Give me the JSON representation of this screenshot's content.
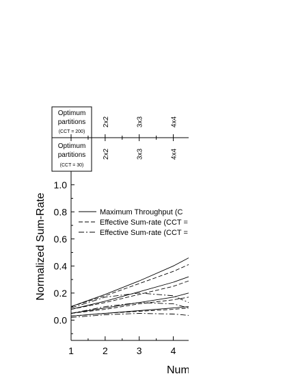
{
  "chart_data": {
    "type": "line",
    "title": "",
    "ylabel": "Normalized Sum-Rate",
    "xlabel": "Num",
    "xlim": [
      1,
      4.45
    ],
    "ylim": [
      -0.15,
      1.1
    ],
    "x_ticks": [
      "1",
      "2",
      "3",
      "4"
    ],
    "y_ticks": [
      "0.0",
      "0.2",
      "0.4",
      "0.6",
      "0.8",
      "1.0"
    ],
    "legend": {
      "placement": "top-right",
      "entries": [
        {
          "label": "Maximum Throughput (C",
          "style": "solid"
        },
        {
          "label": "Effective Sum-rate (CCT =",
          "style": "dashed"
        },
        {
          "label": "Effective Sum-rate (CCT =",
          "style": "dashdot"
        }
      ]
    },
    "partitions": [
      {
        "label_lines": [
          "Optimum",
          "partitions"
        ],
        "cct": "(CCT = 200)",
        "values": [
          "2x2",
          "3x3",
          "4x4"
        ]
      },
      {
        "label_lines": [
          "Optimum",
          "partitions"
        ],
        "cct": "(CCT = 30)",
        "values": [
          "2x2",
          "3x3",
          "4x4"
        ]
      }
    ],
    "series": [
      {
        "style": "solid",
        "x": [
          1,
          2,
          3,
          4,
          4.45
        ],
        "values": [
          0.1,
          0.19,
          0.29,
          0.4,
          0.46
        ]
      },
      {
        "style": "dashed",
        "x": [
          1,
          2,
          3,
          4,
          4.45
        ],
        "values": [
          0.1,
          0.18,
          0.27,
          0.36,
          0.41
        ]
      },
      {
        "style": "solid",
        "x": [
          1,
          2,
          3,
          4,
          4.45
        ],
        "values": [
          0.08,
          0.14,
          0.21,
          0.28,
          0.32
        ]
      },
      {
        "style": "dashed",
        "x": [
          1,
          2,
          3,
          4,
          4.45
        ],
        "values": [
          0.08,
          0.13,
          0.19,
          0.25,
          0.29
        ]
      },
      {
        "style": "dashdot",
        "x": [
          1,
          2,
          3,
          4,
          4.45
        ],
        "values": [
          0.09,
          0.17,
          0.2,
          0.18,
          0.13
        ]
      },
      {
        "style": "solid",
        "x": [
          1,
          2,
          3,
          4,
          4.45
        ],
        "values": [
          0.05,
          0.09,
          0.13,
          0.17,
          0.2
        ]
      },
      {
        "style": "dashed",
        "x": [
          1,
          2,
          3,
          4,
          4.45
        ],
        "values": [
          0.05,
          0.08,
          0.12,
          0.15,
          0.17
        ]
      },
      {
        "style": "dashdot",
        "x": [
          1,
          2,
          3,
          4,
          4.45
        ],
        "values": [
          0.05,
          0.1,
          0.13,
          0.12,
          0.09
        ]
      },
      {
        "style": "solid",
        "x": [
          1,
          2,
          3,
          4,
          4.45
        ],
        "values": [
          0.03,
          0.05,
          0.07,
          0.09,
          0.1
        ]
      },
      {
        "style": "dashed",
        "x": [
          1,
          2,
          3,
          4,
          4.45
        ],
        "values": [
          0.03,
          0.05,
          0.065,
          0.08,
          0.09
        ]
      },
      {
        "style": "dashdot",
        "x": [
          1,
          2,
          3,
          4,
          4.45
        ],
        "values": [
          0.02,
          0.04,
          0.05,
          0.045,
          0.035
        ]
      }
    ]
  }
}
